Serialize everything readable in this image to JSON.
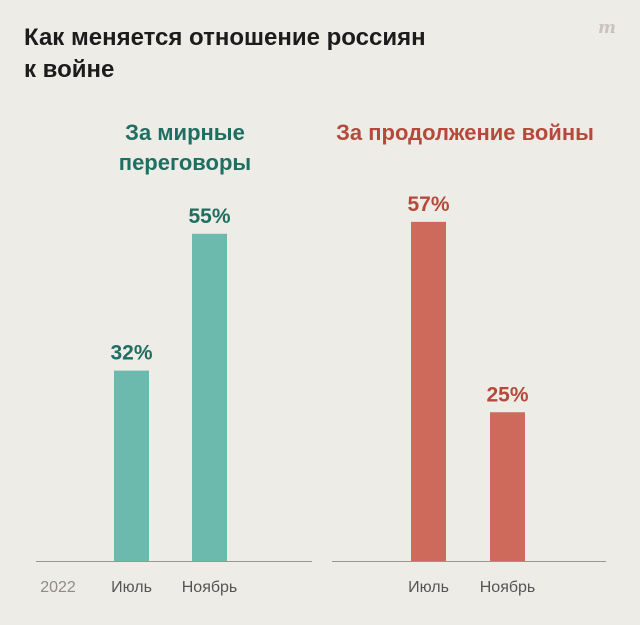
{
  "title": "Как меняется отношение россиян к войне",
  "logo": "m",
  "colors": {
    "peace_bar": "#6cb9ad",
    "peace_text": "#1f6e62",
    "war_bar": "#cd6a5b",
    "war_text": "#b54a3c",
    "background": "#eeece6"
  },
  "chart_data": {
    "type": "bar",
    "year_label": "2022",
    "ylim": [
      0,
      60
    ],
    "groups": [
      {
        "name": "За мирные переговоры",
        "categories": [
          "Июль",
          "Ноябрь"
        ],
        "values": [
          32,
          55
        ],
        "value_labels": [
          "32%",
          "55%"
        ]
      },
      {
        "name": "За продолжение войны",
        "categories": [
          "Июль",
          "Ноябрь"
        ],
        "values": [
          57,
          25
        ],
        "value_labels": [
          "57%",
          "25%"
        ]
      }
    ]
  }
}
